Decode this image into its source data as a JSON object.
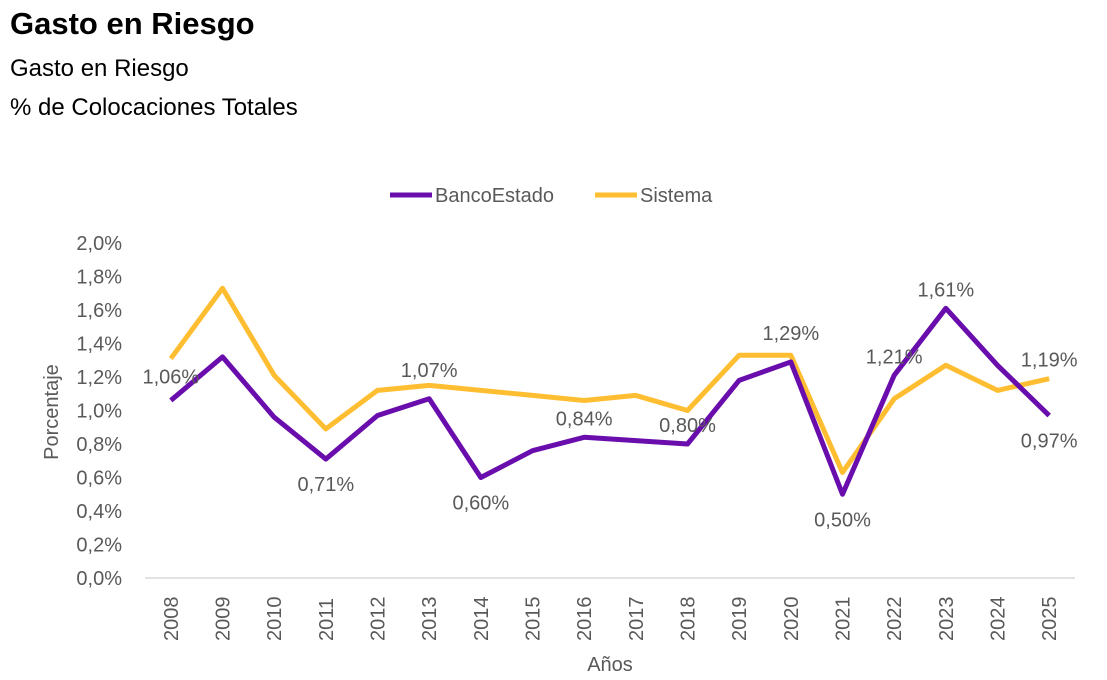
{
  "header": {
    "title": "Gasto en Riesgo",
    "subtitle": "Gasto en Riesgo",
    "subtitle2": "% de Colocaciones Totales"
  },
  "chart_data": {
    "type": "line",
    "title": "Gasto en Riesgo",
    "xlabel": "Años",
    "ylabel": "Porcentaje",
    "ylim": [
      0,
      2.0
    ],
    "yticks": [
      "0,0%",
      "0,2%",
      "0,4%",
      "0,6%",
      "0,8%",
      "1,0%",
      "1,2%",
      "1,4%",
      "1,6%",
      "1,8%",
      "2,0%"
    ],
    "grid": false,
    "legend_position": "top-center",
    "x": [
      "2008",
      "2009",
      "2010",
      "2011",
      "2012",
      "2013",
      "2014",
      "2015",
      "2016",
      "2017",
      "2018",
      "2019",
      "2020",
      "2021",
      "2022",
      "2023",
      "2024",
      "2025"
    ],
    "series": [
      {
        "name": "BancoEstado",
        "color": "#6A0DAD",
        "values": [
          1.06,
          1.32,
          0.96,
          0.71,
          0.97,
          1.07,
          0.6,
          0.76,
          0.84,
          0.82,
          0.8,
          1.18,
          1.29,
          0.5,
          1.21,
          1.61,
          1.27,
          0.97
        ]
      },
      {
        "name": "Sistema",
        "color": "#FFBE32",
        "values": [
          1.31,
          1.73,
          1.21,
          0.89,
          1.12,
          1.15,
          1.12,
          1.09,
          1.06,
          1.09,
          1.0,
          1.33,
          1.33,
          0.63,
          1.07,
          1.27,
          1.12,
          1.19
        ]
      }
    ],
    "data_labels": [
      {
        "series": 0,
        "index": 0,
        "text": "1,06%",
        "pos": "above"
      },
      {
        "series": 0,
        "index": 3,
        "text": "0,71%",
        "pos": "below"
      },
      {
        "series": 0,
        "index": 5,
        "text": "1,07%",
        "pos": "above2"
      },
      {
        "series": 0,
        "index": 6,
        "text": "0,60%",
        "pos": "below"
      },
      {
        "series": 0,
        "index": 8,
        "text": "0,84%",
        "pos": "above"
      },
      {
        "series": 0,
        "index": 10,
        "text": "0,80%",
        "pos": "above"
      },
      {
        "series": 0,
        "index": 12,
        "text": "1,29%",
        "pos": "above2"
      },
      {
        "series": 0,
        "index": 13,
        "text": "0,50%",
        "pos": "below"
      },
      {
        "series": 0,
        "index": 14,
        "text": "1,21%",
        "pos": "above"
      },
      {
        "series": 0,
        "index": 15,
        "text": "1,61%",
        "pos": "above"
      },
      {
        "series": 1,
        "index": 17,
        "text": "1,19%",
        "pos": "above"
      },
      {
        "series": 0,
        "index": 17,
        "text": "0,97%",
        "pos": "below"
      }
    ]
  }
}
